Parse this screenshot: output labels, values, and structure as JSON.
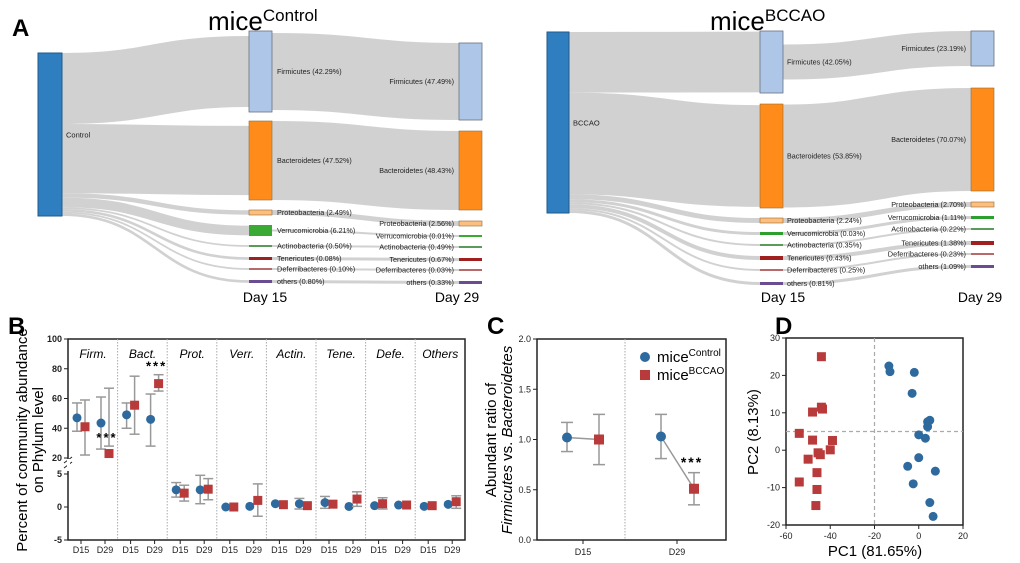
{
  "panel_letters": [
    "A",
    "B",
    "C",
    "D"
  ],
  "colors": {
    "control": "#2e6a9e",
    "bccao": "#b83a3a",
    "link": "#cccccc",
    "source": "#2f7ebf",
    "phyla": [
      "#aec7e8",
      "#ff8c1a",
      "#fdbf7f",
      "#2ca02c",
      "#5a9a5a",
      "#a02020",
      "#b86a6a",
      "#6a4c93"
    ]
  },
  "chart_data": [
    {
      "type": "sankey",
      "title": "mice",
      "title_sup": "Control",
      "source": "Control",
      "day_labels": [
        "Day 15",
        "Day 29"
      ],
      "day15": [
        "Firmicutes (42.29%)",
        "Bacteroidetes (47.52%)",
        "Proteobacteria (2.49%)",
        "Verrucomicrobia (6.21%)",
        "Actinobacteria (0.50%)",
        "Tenericutes (0.08%)",
        "Deferribacteres (0.10%)",
        "others (0.80%)"
      ],
      "day29": [
        "Firmicutes (47.49%)",
        "Bacteroidetes (48.43%)",
        "Proteobacteria (2.56%)",
        "Verrucomicrobia (0.01%)",
        "Actinobacteria (0.49%)",
        "Tenericutes (0.67%)",
        "Deferribacteres (0.03%)",
        "others (0.33%)"
      ]
    },
    {
      "type": "sankey",
      "title": "mice",
      "title_sup": "BCCAO",
      "source": "BCCAO",
      "day_labels": [
        "Day 15",
        "Day 29"
      ],
      "day15": [
        "Firmicutes (42.05%)",
        "Bacteroidetes (53.85%)",
        "Proteobacteria (2.24%)",
        "Verrucomicrobia (0.03%)",
        "Actinobacteria (0.35%)",
        "Tenericutes (0.43%)",
        "Deferribacteres (0.25%)",
        "others (0.81%)"
      ],
      "day29": [
        "Firmicutes (23.19%)",
        "Bacteroidetes (70.07%)",
        "Proteobacteria (2.70%)",
        "Verrucomicrobia (1.11%)",
        "Actinobacteria (0.22%)",
        "Tenericutes (1.38%)",
        "Deferribacteres (0.23%)",
        "others (1.09%)"
      ]
    },
    {
      "type": "scatter-errorbar",
      "ylabel": [
        "Percent of community abundance",
        "on Phylum level"
      ],
      "yticks_upper": [
        20,
        40,
        60,
        80,
        100
      ],
      "yticks_lower": [
        -5,
        0,
        5
      ],
      "ylim": [
        -5,
        100
      ],
      "axis_break": [
        5,
        20
      ],
      "x_ticks": [
        "D15",
        "D29"
      ],
      "categories": [
        "Firm.",
        "Bact.",
        "Prot.",
        "Verr.",
        "Actin.",
        "Tene.",
        "Defe.",
        "Others"
      ],
      "significance": "***",
      "data": [
        {
          "D15": {
            "control": [
              47,
              38,
              57
            ],
            "bccao": [
              41,
              22,
              59
            ]
          },
          "D29": {
            "control": [
              43.5,
              26,
              61
            ],
            "bccao": [
              23,
              18,
              28
            ],
            "sig": true
          }
        },
        {
          "D15": {
            "control": [
              49,
              40,
              57
            ],
            "bccao": [
              55.5,
              36,
              75
            ]
          },
          "D29": {
            "control": [
              46,
              28,
              63
            ],
            "bccao": [
              70,
              65,
              76
            ],
            "sig": true
          }
        },
        {
          "D15": {
            "control": [
              2.6,
              1.5,
              3.7
            ],
            "bccao": [
              2.1,
              0.9,
              3.3
            ]
          },
          "D29": {
            "control": [
              2.6,
              0.5,
              4.8
            ],
            "bccao": [
              2.7,
              1.1,
              4.3
            ]
          }
        },
        {
          "D15": {
            "control": [
              0,
              0,
              0
            ],
            "bccao": [
              0,
              0,
              0
            ]
          },
          "D29": {
            "control": [
              0.1,
              0.1,
              0.1
            ],
            "bccao": [
              1,
              -1.4,
              3.5
            ]
          }
        },
        {
          "D15": {
            "control": [
              0.5,
              0.5,
              0.5
            ],
            "bccao": [
              0.35,
              0.35,
              0.35
            ]
          },
          "D29": {
            "control": [
              0.5,
              -0.3,
              1.3
            ],
            "bccao": [
              0.2,
              0.2,
              0.2
            ]
          }
        },
        {
          "D15": {
            "control": [
              0.67,
              -0.2,
              1.6
            ],
            "bccao": [
              0.43,
              0.43,
              0.43
            ]
          },
          "D29": {
            "control": [
              0.08,
              0.08,
              0.08
            ],
            "bccao": [
              1.2,
              0.1,
              2.3
            ]
          }
        },
        {
          "D15": {
            "control": [
              0.2,
              0.2,
              0.2
            ],
            "bccao": [
              0.5,
              -0.3,
              1.4
            ]
          },
          "D29": {
            "control": [
              0.3,
              0.3,
              0.3
            ],
            "bccao": [
              0.3,
              0.3,
              0.3
            ]
          }
        },
        {
          "D15": {
            "control": [
              0.1,
              0.1,
              0.1
            ],
            "bccao": [
              0.2,
              0.2,
              0.2
            ]
          },
          "D29": {
            "control": [
              0.4,
              0.4,
              0.4
            ],
            "bccao": [
              0.8,
              -0.2,
              1.7
            ]
          }
        }
      ]
    },
    {
      "type": "line-errorbar",
      "ylabel": [
        "Abundant ratio of",
        "Firmicutes",
        " vs. ",
        "Bacteroidetes"
      ],
      "yticks": [
        "0.0",
        "0.5",
        "1.0",
        "1.5",
        "2.0"
      ],
      "ylim": [
        0,
        2
      ],
      "categories": [
        "D15",
        "D29"
      ],
      "legend": [
        {
          "name": "mice",
          "sup": "Control"
        },
        {
          "name": "mice",
          "sup": "BCCAO"
        }
      ],
      "significance": "***",
      "control": [
        [
          1.02,
          0.88,
          1.17
        ],
        [
          1.03,
          0.81,
          1.25
        ]
      ],
      "bccao": [
        [
          1.0,
          0.75,
          1.25
        ],
        [
          0.51,
          0.35,
          0.67
        ]
      ]
    },
    {
      "type": "scatter",
      "xlabel": "PC1 (81.65%)",
      "ylabel": "PC2 (8.13%)",
      "xticks": [
        -60,
        -40,
        -20,
        0,
        20
      ],
      "yticks": [
        -20,
        -10,
        0,
        10,
        20,
        30
      ],
      "xlim": [
        -60,
        20
      ],
      "ylim": [
        -20,
        30
      ],
      "ref_lines": {
        "x": -20,
        "y": 5
      },
      "control": [
        [
          -13.5,
          22.5
        ],
        [
          -13,
          21
        ],
        [
          -2,
          20.8
        ],
        [
          -3,
          15.2
        ],
        [
          5,
          8
        ],
        [
          4,
          7.6
        ],
        [
          4,
          6.3
        ],
        [
          0,
          4.1
        ],
        [
          3,
          3.2
        ],
        [
          0,
          -2
        ],
        [
          -5,
          -4.3
        ],
        [
          7.5,
          -5.6
        ],
        [
          -2.5,
          -9
        ],
        [
          5,
          -14
        ],
        [
          6.5,
          -17.7
        ]
      ],
      "bccao": [
        [
          -44,
          25
        ],
        [
          -44,
          11.5
        ],
        [
          -43.5,
          11
        ],
        [
          -48,
          10.2
        ],
        [
          -54,
          4.5
        ],
        [
          -48,
          2.7
        ],
        [
          -39,
          2.6
        ],
        [
          -40,
          0.1
        ],
        [
          -45.5,
          -0.7
        ],
        [
          -44.5,
          -1.2
        ],
        [
          -50,
          -2.4
        ],
        [
          -46,
          -6
        ],
        [
          -54,
          -8.5
        ],
        [
          -46,
          -10.5
        ],
        [
          -46.5,
          -14.8
        ]
      ]
    }
  ]
}
